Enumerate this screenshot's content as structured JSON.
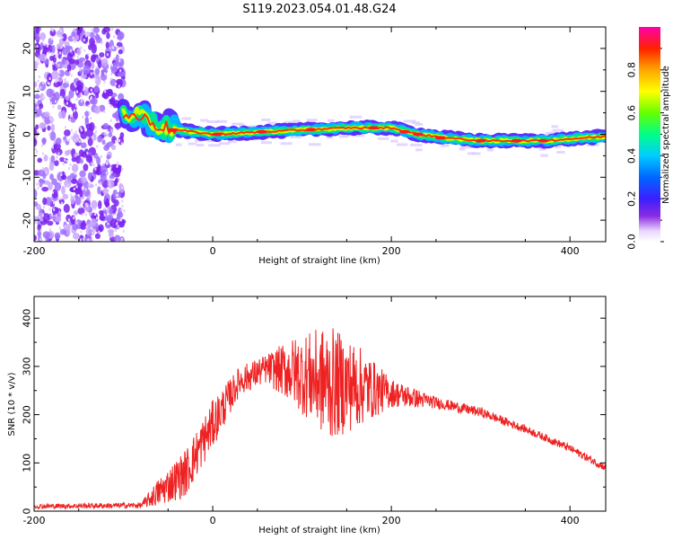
{
  "title": "S119.2023.054.01.48.G24",
  "colors": {
    "snr_line": "#ee2222",
    "cloud": "#7a20f0",
    "cloud_light": "#c9a6ff"
  },
  "chart_data": [
    {
      "type": "heatmap",
      "xlabel": "Height of straight line (km)",
      "ylabel": "Frequency (Hz)",
      "xlim": [
        -200,
        440
      ],
      "ylim": [
        -25,
        25
      ],
      "xticks": [
        "-200",
        "0",
        "200",
        "400"
      ],
      "yticks": [
        "-20",
        "-10",
        "0",
        "10",
        "20"
      ],
      "colorbar": {
        "label": "Normalized spectral amplitude",
        "range": [
          0,
          1
        ],
        "ticks": [
          "0.0",
          "0.2",
          "0.4",
          "0.6",
          "0.8"
        ],
        "colormap": "rainbow"
      },
      "noise_region_km": [
        -200,
        -100
      ],
      "ridge": [
        {
          "x": -100,
          "y": 4.5
        },
        {
          "x": -80,
          "y": 4.0
        },
        {
          "x": -60,
          "y": 2.0
        },
        {
          "x": -40,
          "y": 1.0
        },
        {
          "x": 0,
          "y": 0.0
        },
        {
          "x": 50,
          "y": 0.5
        },
        {
          "x": 100,
          "y": 1.0
        },
        {
          "x": 150,
          "y": 1.5
        },
        {
          "x": 200,
          "y": 1.5
        },
        {
          "x": 230,
          "y": 0.0
        },
        {
          "x": 260,
          "y": -0.8
        },
        {
          "x": 300,
          "y": -1.5
        },
        {
          "x": 370,
          "y": -1.5
        },
        {
          "x": 440,
          "y": -0.5
        }
      ]
    },
    {
      "type": "line",
      "xlabel": "Height of straight line (km)",
      "ylabel": "SNR (10 * v/v)",
      "xlim": [
        -200,
        440
      ],
      "ylim": [
        0,
        445
      ],
      "xticks": [
        "-200",
        "0",
        "200",
        "400"
      ],
      "yticks": [
        "0",
        "100",
        "200",
        "300",
        "400"
      ],
      "envelope": [
        {
          "x": -200,
          "base": 10,
          "amp": 5
        },
        {
          "x": -80,
          "base": 12,
          "amp": 6
        },
        {
          "x": -60,
          "base": 40,
          "amp": 30
        },
        {
          "x": -30,
          "base": 80,
          "amp": 50
        },
        {
          "x": 0,
          "base": 180,
          "amp": 50
        },
        {
          "x": 30,
          "base": 270,
          "amp": 30
        },
        {
          "x": 60,
          "base": 295,
          "amp": 30
        },
        {
          "x": 90,
          "base": 290,
          "amp": 70
        },
        {
          "x": 130,
          "base": 265,
          "amp": 120
        },
        {
          "x": 160,
          "base": 260,
          "amp": 90
        },
        {
          "x": 200,
          "base": 245,
          "amp": 30
        },
        {
          "x": 250,
          "base": 225,
          "amp": 12
        },
        {
          "x": 300,
          "base": 205,
          "amp": 10
        },
        {
          "x": 350,
          "base": 170,
          "amp": 8
        },
        {
          "x": 400,
          "base": 130,
          "amp": 8
        },
        {
          "x": 440,
          "base": 90,
          "amp": 8
        }
      ]
    }
  ]
}
